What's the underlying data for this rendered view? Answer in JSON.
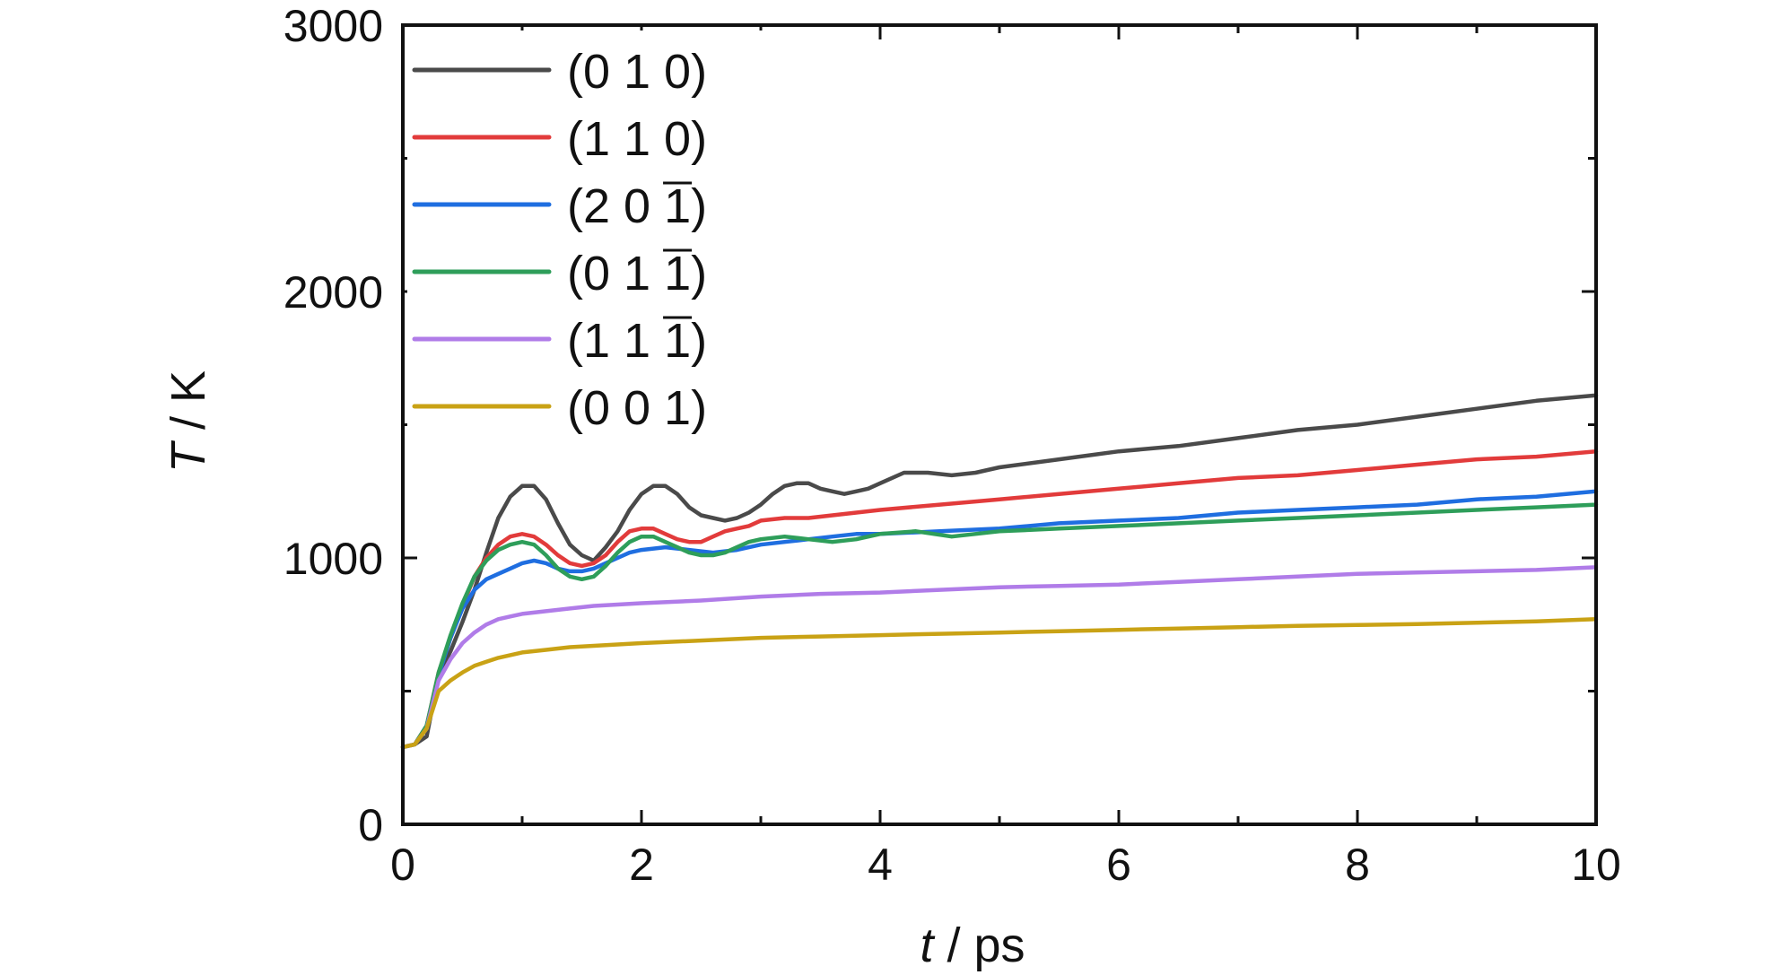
{
  "chart_data": {
    "type": "line",
    "title": "",
    "xlabel": {
      "var": "t",
      "unit": " / ps"
    },
    "ylabel": {
      "var": "T",
      "unit": " / K"
    },
    "xlim": [
      0,
      10
    ],
    "ylim": [
      0,
      3000
    ],
    "xticks": [
      "0",
      "2",
      "4",
      "6",
      "8",
      "10"
    ],
    "yticks": [
      "0",
      "1000",
      "2000",
      "3000"
    ],
    "grid": false,
    "legend_position": "top-left",
    "series": [
      {
        "name": "(0 1 0)",
        "label_parts": [
          "(0 1 0)"
        ],
        "color": "#4a4a4a",
        "x": [
          0,
          0.1,
          0.2,
          0.3,
          0.4,
          0.5,
          0.6,
          0.7,
          0.8,
          0.9,
          1.0,
          1.1,
          1.2,
          1.3,
          1.4,
          1.5,
          1.6,
          1.7,
          1.8,
          1.9,
          2.0,
          2.1,
          2.2,
          2.3,
          2.4,
          2.5,
          2.6,
          2.7,
          2.8,
          2.9,
          3.0,
          3.1,
          3.2,
          3.3,
          3.4,
          3.5,
          3.6,
          3.7,
          3.8,
          3.9,
          4.0,
          4.2,
          4.4,
          4.6,
          4.8,
          5.0,
          5.5,
          6.0,
          6.5,
          7.0,
          7.5,
          8.0,
          8.5,
          9.0,
          9.5,
          10.0
        ],
        "y": [
          290,
          300,
          330,
          560,
          650,
          760,
          880,
          1020,
          1150,
          1230,
          1270,
          1270,
          1220,
          1130,
          1050,
          1010,
          990,
          1040,
          1100,
          1180,
          1240,
          1270,
          1270,
          1240,
          1190,
          1160,
          1150,
          1140,
          1150,
          1170,
          1200,
          1240,
          1270,
          1280,
          1280,
          1260,
          1250,
          1240,
          1250,
          1260,
          1280,
          1320,
          1320,
          1310,
          1320,
          1340,
          1370,
          1400,
          1420,
          1450,
          1480,
          1500,
          1530,
          1560,
          1590,
          1610
        ]
      },
      {
        "name": "(1 1 0)",
        "label_parts": [
          "(1 1 0)"
        ],
        "color": "#e23b3b",
        "x": [
          0,
          0.1,
          0.2,
          0.3,
          0.4,
          0.5,
          0.6,
          0.7,
          0.8,
          0.9,
          1.0,
          1.1,
          1.2,
          1.3,
          1.4,
          1.5,
          1.6,
          1.7,
          1.8,
          1.9,
          2.0,
          2.1,
          2.2,
          2.3,
          2.4,
          2.5,
          2.6,
          2.7,
          2.8,
          2.9,
          3.0,
          3.2,
          3.4,
          3.6,
          3.8,
          4.0,
          4.5,
          5.0,
          5.5,
          6.0,
          6.5,
          7.0,
          7.5,
          8.0,
          8.5,
          9.0,
          9.5,
          10.0
        ],
        "y": [
          290,
          300,
          370,
          570,
          700,
          820,
          930,
          1000,
          1050,
          1080,
          1090,
          1080,
          1050,
          1010,
          980,
          970,
          980,
          1010,
          1060,
          1100,
          1110,
          1110,
          1090,
          1070,
          1060,
          1060,
          1080,
          1100,
          1110,
          1120,
          1140,
          1150,
          1150,
          1160,
          1170,
          1180,
          1200,
          1220,
          1240,
          1260,
          1280,
          1300,
          1310,
          1330,
          1350,
          1370,
          1380,
          1400
        ]
      },
      {
        "name": "(2 0 -1)",
        "label_parts": [
          "(2 0 ",
          "1",
          ")"
        ],
        "color": "#1f6ee0",
        "x": [
          0,
          0.1,
          0.2,
          0.3,
          0.4,
          0.5,
          0.6,
          0.7,
          0.8,
          0.9,
          1.0,
          1.1,
          1.2,
          1.3,
          1.4,
          1.5,
          1.6,
          1.7,
          1.8,
          1.9,
          2.0,
          2.2,
          2.4,
          2.6,
          2.8,
          3.0,
          3.2,
          3.4,
          3.6,
          3.8,
          4.0,
          4.5,
          5.0,
          5.5,
          6.0,
          6.5,
          7.0,
          7.5,
          8.0,
          8.5,
          9.0,
          9.5,
          10.0
        ],
        "y": [
          290,
          300,
          370,
          560,
          700,
          810,
          880,
          920,
          940,
          960,
          980,
          990,
          980,
          960,
          950,
          950,
          960,
          980,
          1000,
          1020,
          1030,
          1040,
          1030,
          1020,
          1030,
          1050,
          1060,
          1070,
          1080,
          1090,
          1090,
          1100,
          1110,
          1130,
          1140,
          1150,
          1170,
          1180,
          1190,
          1200,
          1220,
          1230,
          1250
        ]
      },
      {
        "name": "(0 1 -1)",
        "label_parts": [
          "(0 1 ",
          "1",
          ")"
        ],
        "color": "#2e9e5a",
        "x": [
          0,
          0.1,
          0.2,
          0.3,
          0.4,
          0.5,
          0.6,
          0.7,
          0.8,
          0.9,
          1.0,
          1.1,
          1.2,
          1.3,
          1.4,
          1.5,
          1.6,
          1.7,
          1.8,
          1.9,
          2.0,
          2.1,
          2.2,
          2.3,
          2.4,
          2.5,
          2.6,
          2.7,
          2.8,
          2.9,
          3.0,
          3.2,
          3.4,
          3.6,
          3.8,
          4.0,
          4.3,
          4.6,
          5.0,
          5.5,
          6.0,
          6.5,
          7.0,
          7.5,
          8.0,
          8.5,
          9.0,
          9.5,
          10.0
        ],
        "y": [
          290,
          300,
          370,
          570,
          710,
          830,
          930,
          990,
          1030,
          1050,
          1060,
          1050,
          1010,
          960,
          930,
          920,
          930,
          970,
          1020,
          1060,
          1080,
          1080,
          1060,
          1040,
          1020,
          1010,
          1010,
          1020,
          1040,
          1060,
          1070,
          1080,
          1070,
          1060,
          1070,
          1090,
          1100,
          1080,
          1100,
          1110,
          1120,
          1130,
          1140,
          1150,
          1160,
          1170,
          1180,
          1190,
          1200
        ]
      },
      {
        "name": "(1 1 -1)",
        "label_parts": [
          "(1 1 ",
          "1",
          ")"
        ],
        "color": "#b07ce8",
        "x": [
          0,
          0.1,
          0.2,
          0.3,
          0.4,
          0.5,
          0.6,
          0.7,
          0.8,
          0.9,
          1.0,
          1.2,
          1.4,
          1.6,
          1.8,
          2.0,
          2.5,
          3.0,
          3.5,
          4.0,
          4.5,
          5.0,
          5.5,
          6.0,
          6.5,
          7.0,
          7.5,
          8.0,
          8.5,
          9.0,
          9.5,
          10.0
        ],
        "y": [
          290,
          300,
          360,
          540,
          620,
          680,
          720,
          750,
          770,
          780,
          790,
          800,
          810,
          820,
          825,
          830,
          840,
          855,
          865,
          870,
          880,
          890,
          895,
          900,
          910,
          920,
          930,
          940,
          945,
          950,
          955,
          965
        ]
      },
      {
        "name": "(0 0 1)",
        "label_parts": [
          "(0 0 1)"
        ],
        "color": "#c9a215",
        "x": [
          0,
          0.1,
          0.2,
          0.3,
          0.4,
          0.5,
          0.6,
          0.7,
          0.8,
          0.9,
          1.0,
          1.2,
          1.4,
          1.6,
          1.8,
          2.0,
          2.5,
          3.0,
          3.5,
          4.0,
          4.5,
          5.0,
          5.5,
          6.0,
          6.5,
          7.0,
          7.5,
          8.0,
          8.5,
          9.0,
          9.5,
          10.0
        ],
        "y": [
          290,
          300,
          360,
          500,
          540,
          570,
          595,
          610,
          625,
          635,
          645,
          655,
          665,
          670,
          675,
          680,
          690,
          700,
          705,
          710,
          715,
          720,
          725,
          730,
          735,
          740,
          745,
          748,
          752,
          757,
          762,
          770
        ]
      }
    ]
  }
}
